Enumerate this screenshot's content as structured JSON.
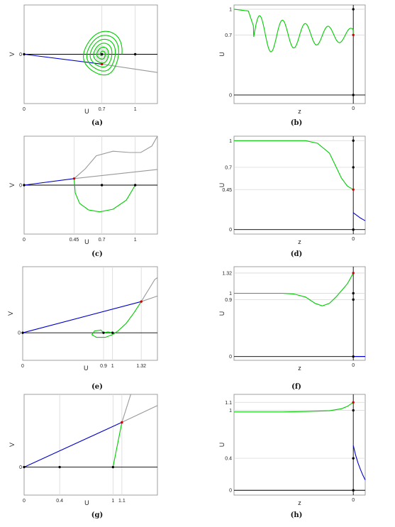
{
  "chart_data": [
    {
      "panel": "a",
      "caption": "(a)",
      "type": "line",
      "xlabel": "U",
      "ylabel": "V",
      "xticks": [
        "0",
        "0.7",
        "1"
      ],
      "yticks": [
        "0"
      ],
      "xlim": [
        0,
        1.2
      ],
      "ylim": [
        -1.0,
        1.0
      ],
      "gridlines_x": [
        0.7,
        1
      ],
      "series": [
        {
          "color": "#0000cc",
          "kind": "segment",
          "x": [
            0,
            0.7
          ],
          "y": [
            0,
            -0.2
          ]
        },
        {
          "color": "#999999",
          "kind": "segment",
          "x": [
            0.7,
            1.2
          ],
          "y": [
            -0.2,
            -0.37
          ]
        },
        {
          "color": "#00cc00",
          "kind": "spiral",
          "center": [
            0.7,
            0
          ],
          "r_outer": [
            0.18,
            0.56
          ],
          "turns": 6
        }
      ],
      "points": [
        {
          "x": 0,
          "y": 0,
          "color": "#000000"
        },
        {
          "x": 0.7,
          "y": 0,
          "color": "#000000"
        },
        {
          "x": 1,
          "y": 0,
          "color": "#000000"
        },
        {
          "x": 0.7,
          "y": -0.2,
          "color": "#cc0000"
        }
      ]
    },
    {
      "panel": "b",
      "caption": "(b)",
      "type": "line",
      "xlabel": "z",
      "ylabel": "U",
      "xticks": [
        "0"
      ],
      "yticks": [
        "0",
        "0.7",
        "1"
      ],
      "xlim": [
        -10,
        1
      ],
      "ylim": [
        -0.1,
        1.05
      ],
      "gridlines_y": [
        0,
        0.7,
        1
      ],
      "series": [
        {
          "color": "#00cc00",
          "kind": "oscillation",
          "x": [
            -10,
            0
          ],
          "start": 1,
          "end": 0.7,
          "approach": 0.7
        }
      ],
      "points": [
        {
          "x": 0,
          "y": 1,
          "color": "#000000"
        },
        {
          "x": 0,
          "y": 0,
          "color": "#000000"
        },
        {
          "x": 0,
          "y": 0.7,
          "color": "#cc0000"
        }
      ]
    },
    {
      "panel": "c",
      "caption": "(c)",
      "type": "line",
      "xlabel": "U",
      "ylabel": "V",
      "xticks": [
        "0",
        "0.45",
        "0.7",
        "1"
      ],
      "yticks": [
        "0"
      ],
      "xlim": [
        0,
        1.2
      ],
      "ylim": [
        -0.75,
        0.75
      ],
      "gridlines_x": [
        0.45,
        0.7,
        1
      ],
      "series": [
        {
          "color": "#0000cc",
          "kind": "segment",
          "x": [
            0,
            0.45
          ],
          "y": [
            0,
            0.1
          ]
        },
        {
          "color": "#999999",
          "kind": "segment",
          "x": [
            0.45,
            1.2
          ],
          "y": [
            0.1,
            0.24
          ]
        },
        {
          "color": "#999999",
          "kind": "curve",
          "x": [
            0.45,
            0.55,
            0.65,
            0.8,
            0.95,
            1.05,
            1.15,
            1.2
          ],
          "y": [
            0.1,
            0.25,
            0.45,
            0.52,
            0.5,
            0.5,
            0.6,
            0.75
          ]
        },
        {
          "color": "#00cc00",
          "kind": "curve",
          "x": [
            0.45,
            0.46,
            0.5,
            0.58,
            0.68,
            0.8,
            0.92,
            1.0
          ],
          "y": [
            0.1,
            -0.12,
            -0.28,
            -0.38,
            -0.41,
            -0.37,
            -0.23,
            0
          ]
        }
      ],
      "points": [
        {
          "x": 0,
          "y": 0,
          "color": "#000000"
        },
        {
          "x": 0.7,
          "y": 0,
          "color": "#000000"
        },
        {
          "x": 1,
          "y": 0,
          "color": "#000000"
        },
        {
          "x": 0.45,
          "y": 0.1,
          "color": "#cc0000"
        }
      ]
    },
    {
      "panel": "d",
      "caption": "(d)",
      "type": "line",
      "xlabel": "z",
      "ylabel": "U",
      "xticks": [
        "0"
      ],
      "yticks": [
        "0",
        "0.45",
        "0.7",
        "1"
      ],
      "xlim": [
        -10,
        1
      ],
      "ylim": [
        -0.05,
        1.05
      ],
      "gridlines_y": [
        0,
        0.45,
        0.7,
        1
      ],
      "series": [
        {
          "color": "#00cc00",
          "kind": "curve",
          "x": [
            -10,
            -4,
            -3,
            -2,
            -1.5,
            -1,
            -0.5,
            0
          ],
          "y": [
            1,
            1,
            0.97,
            0.86,
            0.72,
            0.58,
            0.49,
            0.45
          ]
        },
        {
          "color": "#0000cc",
          "kind": "curve",
          "x": [
            0,
            0.2,
            0.4,
            0.6,
            0.8,
            1.0
          ],
          "y": [
            0.19,
            0.17,
            0.15,
            0.13,
            0.115,
            0.1
          ]
        }
      ],
      "points": [
        {
          "x": 0,
          "y": 1,
          "color": "#000000"
        },
        {
          "x": 0,
          "y": 0.7,
          "color": "#000000"
        },
        {
          "x": 0,
          "y": 0,
          "color": "#000000"
        },
        {
          "x": 0,
          "y": 0.45,
          "color": "#cc0000"
        }
      ]
    },
    {
      "panel": "e",
      "caption": "(e)",
      "type": "line",
      "xlabel": "U",
      "ylabel": "V",
      "xticks": [
        "0",
        "0.9",
        "1",
        "1.32"
      ],
      "yticks": [
        "0"
      ],
      "xlim": [
        0,
        1.5
      ],
      "ylim": [
        -0.3,
        0.72
      ],
      "gridlines_x": [
        0.9,
        1,
        1.32
      ],
      "series": [
        {
          "color": "#0000cc",
          "kind": "segment",
          "x": [
            0,
            1.32
          ],
          "y": [
            0,
            0.34
          ]
        },
        {
          "color": "#999999",
          "kind": "segment",
          "x": [
            1.32,
            1.5
          ],
          "y": [
            0.34,
            0.4
          ]
        },
        {
          "color": "#999999",
          "kind": "curve",
          "x": [
            1.32,
            1.37,
            1.42,
            1.47,
            1.5
          ],
          "y": [
            0.34,
            0.42,
            0.5,
            0.58,
            0.6
          ]
        },
        {
          "color": "#00cc00",
          "kind": "curve",
          "x": [
            1.32,
            1.24,
            1.15,
            1.06,
            1.0,
            0.92,
            0.82,
            0.77,
            0.8,
            0.87,
            0.9,
            0.95,
            1.0
          ],
          "y": [
            0.34,
            0.22,
            0.1,
            0.02,
            -0.02,
            -0.05,
            -0.05,
            -0.02,
            0.02,
            0.03,
            0.0,
            0.01,
            0.0
          ]
        }
      ],
      "points": [
        {
          "x": 0,
          "y": 0,
          "color": "#000000"
        },
        {
          "x": 0.9,
          "y": 0,
          "color": "#000000"
        },
        {
          "x": 1,
          "y": 0,
          "color": "#000000"
        },
        {
          "x": 1.32,
          "y": 0.34,
          "color": "#cc0000"
        }
      ]
    },
    {
      "panel": "f",
      "caption": "(f)",
      "type": "line",
      "xlabel": "z",
      "ylabel": "U",
      "xticks": [
        "0"
      ],
      "yticks": [
        "0",
        "0.9",
        "1",
        "1.32"
      ],
      "xlim": [
        -10,
        1
      ],
      "ylim": [
        -0.06,
        1.42
      ],
      "gridlines_y": [
        0,
        0.9,
        1,
        1.32
      ],
      "series": [
        {
          "color": "#00cc00",
          "kind": "curve",
          "x": [
            -10,
            -6,
            -5,
            -4,
            -3.2,
            -2.6,
            -2,
            -1.4,
            -0.9,
            -0.5,
            -0.2,
            0
          ],
          "y": [
            1.0,
            1.0,
            0.99,
            0.94,
            0.84,
            0.8,
            0.84,
            0.95,
            1.06,
            1.15,
            1.25,
            1.32
          ]
        },
        {
          "color": "#0000cc",
          "kind": "segment",
          "x": [
            0,
            1
          ],
          "y": [
            0,
            0
          ]
        }
      ],
      "points": [
        {
          "x": 0,
          "y": 1.32,
          "color": "#cc0000"
        },
        {
          "x": 0,
          "y": 1,
          "color": "#000000"
        },
        {
          "x": 0,
          "y": 0.9,
          "color": "#000000"
        },
        {
          "x": 0,
          "y": 0,
          "color": "#000000"
        }
      ]
    },
    {
      "panel": "g",
      "caption": "(g)",
      "type": "line",
      "xlabel": "U",
      "ylabel": "V",
      "xticks": [
        "0",
        "0.4",
        "1",
        "1.1"
      ],
      "yticks": [
        "0"
      ],
      "xlim": [
        0,
        1.5
      ],
      "ylim": [
        -0.25,
        0.65
      ],
      "gridlines_x": [
        0.4,
        1,
        1.1
      ],
      "series": [
        {
          "color": "#0000cc",
          "kind": "segment",
          "x": [
            0,
            1.1
          ],
          "y": [
            0,
            0.4
          ]
        },
        {
          "color": "#999999",
          "kind": "segment",
          "x": [
            1.1,
            1.5
          ],
          "y": [
            0.4,
            0.55
          ]
        },
        {
          "color": "#999999",
          "kind": "segment",
          "x": [
            1.1,
            1.2
          ],
          "y": [
            0.4,
            0.65
          ]
        },
        {
          "color": "#00cc00",
          "kind": "segment",
          "x": [
            1.0,
            1.1
          ],
          "y": [
            0,
            0.4
          ]
        }
      ],
      "points": [
        {
          "x": 0,
          "y": 0,
          "color": "#000000"
        },
        {
          "x": 0.4,
          "y": 0,
          "color": "#000000"
        },
        {
          "x": 1,
          "y": 0,
          "color": "#000000"
        },
        {
          "x": 1.1,
          "y": 0.4,
          "color": "#cc0000"
        }
      ]
    },
    {
      "panel": "h",
      "caption": "(h)",
      "type": "line",
      "xlabel": "z",
      "ylabel": "U",
      "xticks": [
        "0"
      ],
      "yticks": [
        "0",
        "0.4",
        "1",
        "1.1"
      ],
      "xlim": [
        -10,
        1
      ],
      "ylim": [
        -0.06,
        1.2
      ],
      "gridlines_y": [
        0,
        0.4,
        1,
        1.1
      ],
      "series": [
        {
          "color": "#00cc00",
          "kind": "curve",
          "x": [
            -10,
            -6,
            -4,
            -2,
            -1,
            -0.5,
            0
          ],
          "y": [
            0.98,
            0.98,
            0.985,
            0.995,
            1.02,
            1.05,
            1.1
          ]
        },
        {
          "color": "#0000cc",
          "kind": "curve",
          "x": [
            0,
            0.2,
            0.4,
            0.6,
            0.8,
            1.0
          ],
          "y": [
            0.56,
            0.44,
            0.34,
            0.26,
            0.19,
            0.13
          ]
        }
      ],
      "points": [
        {
          "x": 0,
          "y": 1.1,
          "color": "#cc0000"
        },
        {
          "x": 0,
          "y": 1,
          "color": "#000000"
        },
        {
          "x": 0,
          "y": 0.4,
          "color": "#000000"
        },
        {
          "x": 0,
          "y": 0,
          "color": "#000000"
        }
      ]
    }
  ]
}
